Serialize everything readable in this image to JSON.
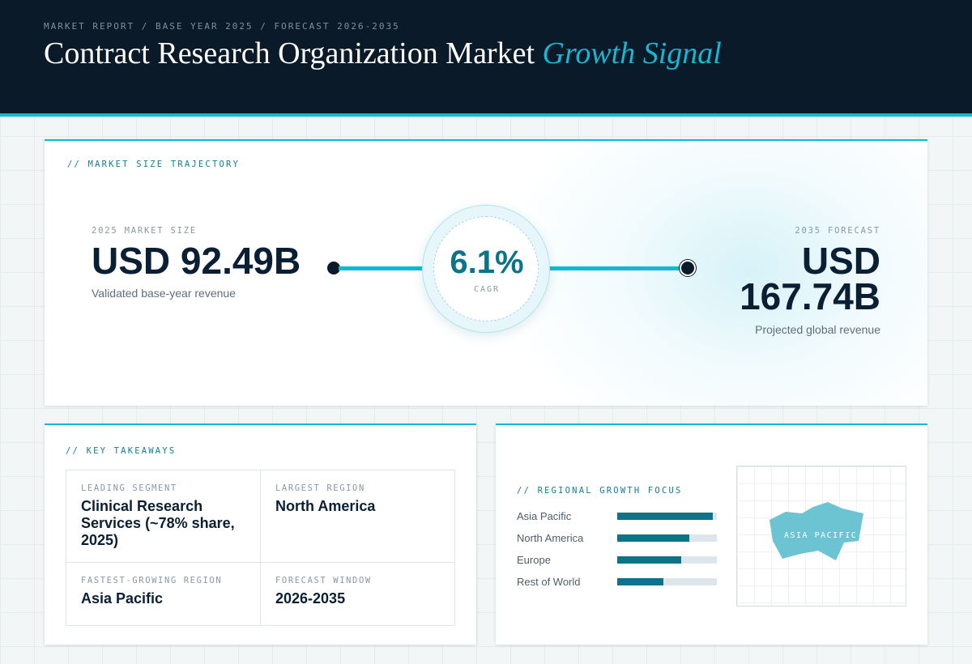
{
  "header": {
    "kicker": "MARKET REPORT / BASE YEAR 2025 / FORECAST 2026-2035",
    "title_main": "Contract Research Organization Market",
    "title_accent": "Growth Signal"
  },
  "trajectory": {
    "section_label": "// MARKET SIZE TRAJECTORY",
    "base": {
      "label": "2025 MARKET SIZE",
      "value": "USD 92.49B",
      "caption": "Validated base-year revenue"
    },
    "cagr": {
      "value": "6.1%",
      "label": "CAGR"
    },
    "forecast": {
      "label": "2035 FORECAST",
      "value_line1": "USD",
      "value_line2": "167.74B",
      "caption": "Projected global revenue"
    }
  },
  "takeaways": {
    "section_label": "// KEY TAKEAWAYS",
    "cells": [
      {
        "label": "LEADING SEGMENT",
        "value": "Clinical Research Services (~78% share, 2025)"
      },
      {
        "label": "LARGEST REGION",
        "value": "North America"
      },
      {
        "label": "FASTEST-GROWING REGION",
        "value": "Asia Pacific"
      },
      {
        "label": "FORECAST WINDOW",
        "value": "2026-2035"
      }
    ]
  },
  "regional": {
    "section_label": "// REGIONAL GROWTH FOCUS",
    "regions": [
      {
        "name": "Asia Pacific",
        "level": 0.96
      },
      {
        "name": "North America",
        "level": 0.72
      },
      {
        "name": "Europe",
        "level": 0.64
      },
      {
        "name": "Rest of World",
        "level": 0.46
      }
    ],
    "map_label": "ASIA PACIFIC"
  },
  "colors": {
    "accent": "#14b8d0",
    "dark": "#0a1a28",
    "bar": "#0b7489",
    "map_fill": "#6cc3d1"
  }
}
